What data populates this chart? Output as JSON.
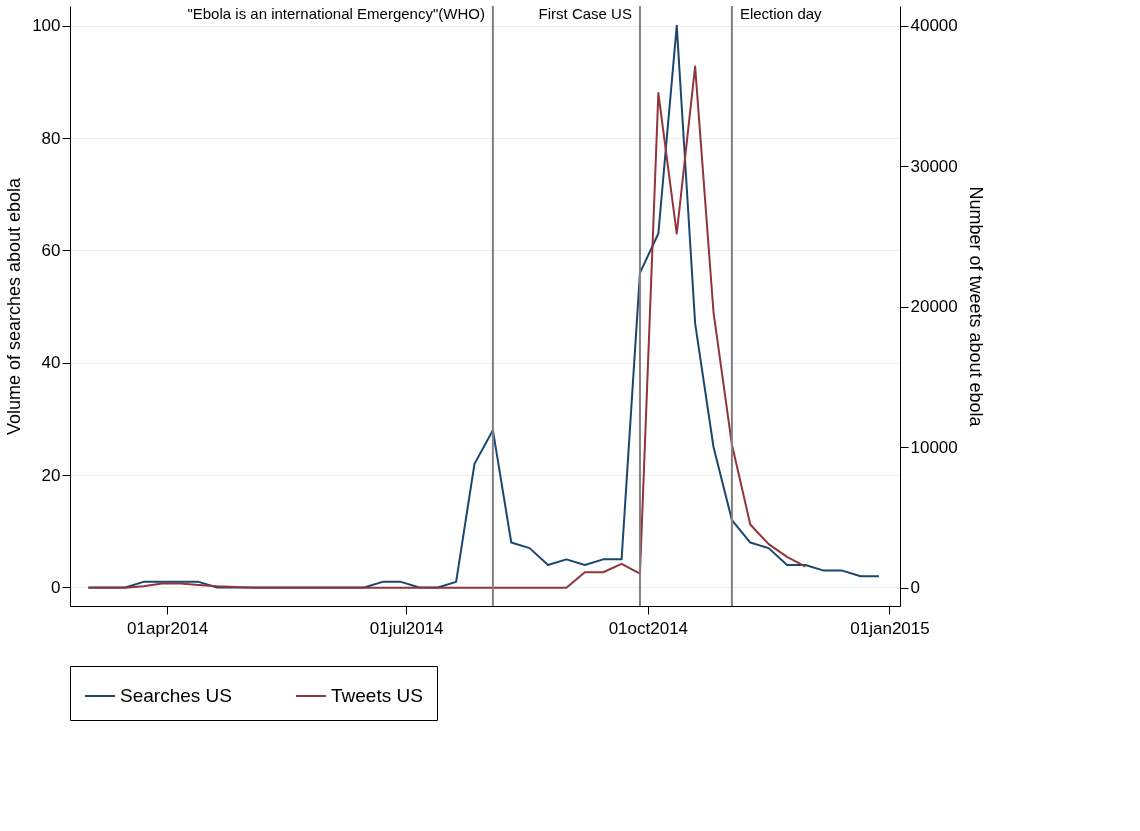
{
  "chart_data": {
    "type": "line",
    "ylabel": "Volume of searches about ebola",
    "y2label": "Number of tweets about ebola",
    "x": [
      "2014-03-02",
      "2014-03-09",
      "2014-03-16",
      "2014-03-23",
      "2014-03-30",
      "2014-04-06",
      "2014-04-13",
      "2014-04-20",
      "2014-04-27",
      "2014-05-04",
      "2014-05-11",
      "2014-05-18",
      "2014-05-25",
      "2014-06-01",
      "2014-06-08",
      "2014-06-15",
      "2014-06-22",
      "2014-06-29",
      "2014-07-06",
      "2014-07-13",
      "2014-07-20",
      "2014-07-27",
      "2014-08-03",
      "2014-08-10",
      "2014-08-17",
      "2014-08-24",
      "2014-08-31",
      "2014-09-07",
      "2014-09-14",
      "2014-09-21",
      "2014-09-28",
      "2014-10-05",
      "2014-10-12",
      "2014-10-19",
      "2014-10-26",
      "2014-11-02",
      "2014-11-09",
      "2014-11-16",
      "2014-11-23",
      "2014-11-30",
      "2014-12-07",
      "2014-12-14",
      "2014-12-21",
      "2014-12-28"
    ],
    "series": [
      {
        "name": "Searches US",
        "color": "#1a476f",
        "values": [
          0,
          0,
          0,
          1,
          1,
          1,
          1,
          0,
          0,
          0,
          0,
          0,
          0,
          0,
          0,
          0,
          1,
          1,
          0,
          0,
          1,
          22,
          28,
          8,
          7,
          4,
          5,
          4,
          5,
          5,
          56,
          63,
          100,
          47,
          25,
          12,
          8,
          7,
          4,
          4,
          3,
          3,
          2,
          2
        ]
      },
      {
        "name": "Tweets US",
        "color": "#90353b",
        "axis": "y2",
        "values": [
          0,
          0,
          0,
          100,
          300,
          300,
          200,
          100,
          50,
          0,
          0,
          0,
          0,
          0,
          0,
          0,
          0,
          0,
          0,
          0,
          0,
          0,
          0,
          0,
          0,
          0,
          0,
          1100,
          1100,
          1700,
          1000,
          35200,
          25200,
          37100,
          19600,
          10200,
          4500,
          3100,
          2200,
          1500,
          null,
          null,
          null,
          null
        ]
      }
    ],
    "xlim": [
      "2014-02-23",
      "2015-01-05"
    ],
    "xticks": [
      {
        "value": "2014-04-01",
        "label": "01apr2014"
      },
      {
        "value": "2014-07-01",
        "label": "01jul2014"
      },
      {
        "value": "2014-10-01",
        "label": "01oct2014"
      },
      {
        "value": "2015-01-01",
        "label": "01jan2015"
      }
    ],
    "ylim": [
      -3.3,
      103.5
    ],
    "yticks": [
      0,
      20,
      40,
      60,
      80,
      100
    ],
    "y2lim": [
      -1300,
      41400
    ],
    "y2ticks": [
      0,
      10000,
      20000,
      30000,
      40000
    ],
    "ref_lines": [
      {
        "axis": "x",
        "value": "2014-08-03",
        "label": "\"Ebola is an international Emergency\"(WHO)",
        "color": "#808080"
      },
      {
        "axis": "x",
        "value": "2014-09-28",
        "label": "First Case US",
        "color": "#808080"
      },
      {
        "axis": "x",
        "value": "2014-11-02",
        "label": "Election day",
        "color": "#808080"
      }
    ],
    "grid": "y",
    "legend": "bottom",
    "marker": "none",
    "line_style": "solid"
  }
}
